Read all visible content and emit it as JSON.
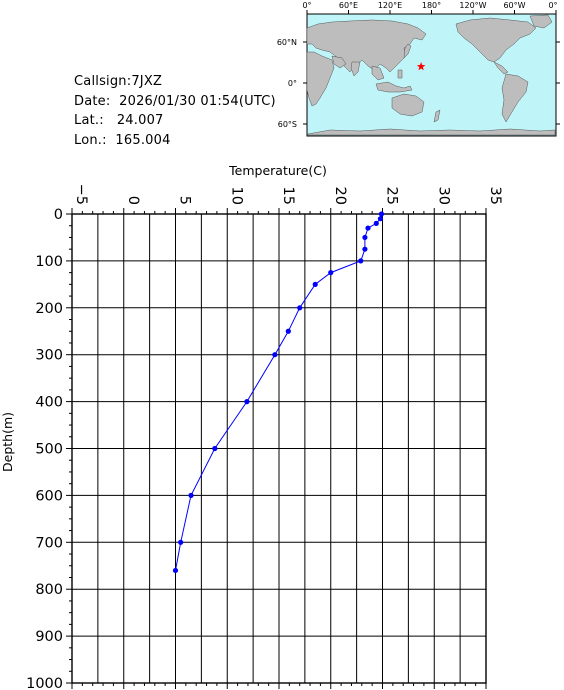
{
  "station": {
    "callsign_label": "Callsign:",
    "callsign": "7JXZ",
    "date_label": "Date:",
    "date": "2026/01/30 01:54(UTC)",
    "lat_label": "Lat.:",
    "lat": "24.007",
    "lon_label": "Lon.:",
    "lon": "165.004"
  },
  "map": {
    "top_labels": [
      "0°",
      "60°E",
      "120°E",
      "180°",
      "120°W",
      "60°W",
      "0°"
    ],
    "lat_labels": [
      "60°N",
      "0°",
      "60°S"
    ],
    "marker_lon": 165.004,
    "marker_lat": 24.007,
    "ocean_color": "#bff5f8",
    "land_color": "#bdbdbd",
    "marker_color": "#ff0000",
    "marker_icon": "star-icon"
  },
  "chart_data": {
    "type": "line",
    "title": "",
    "xlabel": "Temperature(C)",
    "ylabel": "Depth(m)",
    "xlim": [
      -5,
      35
    ],
    "ylim": [
      1000,
      0
    ],
    "x_ticks": [
      "−5",
      "0",
      "5",
      "10",
      "15",
      "20",
      "25",
      "30",
      "35"
    ],
    "y_ticks": [
      "0",
      "100",
      "200",
      "300",
      "400",
      "500",
      "600",
      "700",
      "800",
      "900",
      "1000"
    ],
    "grid": true,
    "line_color": "#0000ff",
    "series": [
      {
        "points": [
          {
            "depth": 0,
            "temp": 24.9
          },
          {
            "depth": 10,
            "temp": 24.8
          },
          {
            "depth": 20,
            "temp": 24.4
          },
          {
            "depth": 30,
            "temp": 23.6
          },
          {
            "depth": 50,
            "temp": 23.3
          },
          {
            "depth": 75,
            "temp": 23.3
          },
          {
            "depth": 100,
            "temp": 22.9
          },
          {
            "depth": 125,
            "temp": 20.0
          },
          {
            "depth": 150,
            "temp": 18.5
          },
          {
            "depth": 200,
            "temp": 17.0
          },
          {
            "depth": 250,
            "temp": 15.9
          },
          {
            "depth": 300,
            "temp": 14.6
          },
          {
            "depth": 400,
            "temp": 11.9
          },
          {
            "depth": 500,
            "temp": 8.8
          },
          {
            "depth": 600,
            "temp": 6.5
          },
          {
            "depth": 700,
            "temp": 5.5
          },
          {
            "depth": 760,
            "temp": 5.0
          }
        ]
      }
    ]
  }
}
